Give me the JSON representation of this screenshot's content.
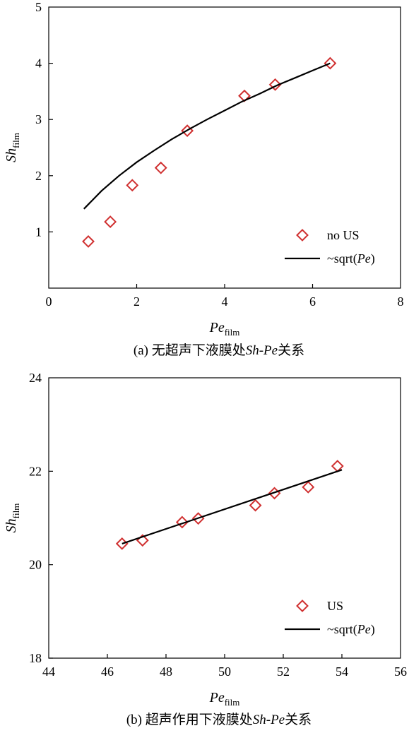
{
  "chart_data": [
    {
      "type": "scatter",
      "caption": "(a) 无超声下液膜处Sh-Pe关系",
      "caption_parts": {
        "prefix": "(a) 无超声下液膜处",
        "sh": "Sh",
        "dash": "-",
        "pe": "Pe",
        "suffix": "关系"
      },
      "xlabel": {
        "main": "Pe",
        "sub": "film"
      },
      "ylabel": {
        "main": "Sh",
        "sub": "film"
      },
      "xlim": [
        0,
        8
      ],
      "ylim": [
        0,
        5
      ],
      "xticks": [
        "0",
        "2",
        "4",
        "6",
        "8"
      ],
      "yticks": [
        "1",
        "2",
        "3",
        "4",
        "5"
      ],
      "legend_position": "bottom-right",
      "series": [
        {
          "name": "no US",
          "kind": "points",
          "marker": "diamond-open",
          "color": "#d03030",
          "x": [
            0.9,
            1.4,
            1.9,
            2.55,
            3.15,
            4.45,
            5.15,
            6.4
          ],
          "y": [
            0.83,
            1.18,
            1.83,
            2.14,
            2.8,
            3.42,
            3.62,
            4.0
          ]
        },
        {
          "name": "~sqrt(Pe)",
          "name_parts": {
            "before": "~sqrt(",
            "italic": "Pe",
            "after": ")"
          },
          "kind": "line",
          "color": "#000000",
          "x": [
            0.8,
            1.2,
            1.6,
            2.0,
            2.4,
            2.8,
            3.2,
            3.6,
            4.0,
            4.4,
            4.8,
            5.2,
            5.6,
            6.0,
            6.4
          ],
          "y": [
            1.41,
            1.73,
            2.0,
            2.24,
            2.45,
            2.65,
            2.83,
            3.0,
            3.16,
            3.32,
            3.46,
            3.61,
            3.74,
            3.87,
            4.0
          ]
        }
      ]
    },
    {
      "type": "scatter",
      "caption": "(b) 超声作用下液膜处Sh-Pe关系",
      "caption_parts": {
        "prefix": "(b) 超声作用下液膜处",
        "sh": "Sh",
        "dash": "-",
        "pe": "Pe",
        "suffix": "关系"
      },
      "xlabel": {
        "main": "Pe",
        "sub": "film"
      },
      "ylabel": {
        "main": "Sh",
        "sub": "film"
      },
      "xlim": [
        44,
        56
      ],
      "ylim": [
        18,
        24
      ],
      "xticks": [
        "44",
        "46",
        "48",
        "50",
        "52",
        "54",
        "56"
      ],
      "yticks": [
        "18",
        "20",
        "22",
        "24"
      ],
      "legend_position": "bottom-right",
      "series": [
        {
          "name": "US",
          "kind": "points",
          "marker": "diamond-open",
          "color": "#d03030",
          "x": [
            46.5,
            47.2,
            48.55,
            49.1,
            51.05,
            51.7,
            52.85,
            53.85
          ],
          "y": [
            20.45,
            20.52,
            20.91,
            20.99,
            21.27,
            21.53,
            21.66,
            22.11
          ]
        },
        {
          "name": "~sqrt(Pe)",
          "name_parts": {
            "before": "~sqrt(",
            "italic": "Pe",
            "after": ")"
          },
          "kind": "line",
          "color": "#000000",
          "x": [
            46.5,
            54.0
          ],
          "y": [
            20.45,
            22.03
          ]
        }
      ]
    }
  ]
}
